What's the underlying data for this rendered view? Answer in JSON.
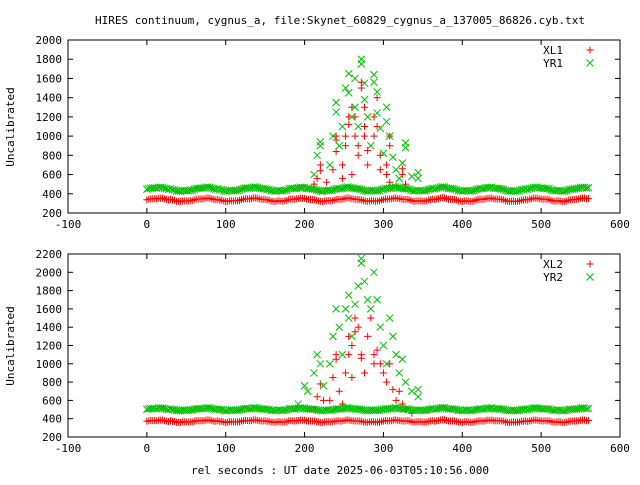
{
  "title": "HIRES continuum, cygnus_a, file:Skynet_60829_cygnus_a_137005_86826.cyb.txt",
  "xlabel": "rel seconds : UT date 2025-06-03T05:10:56.000",
  "colors": {
    "xl": "#ff0000",
    "yr": "#00c000",
    "axis": "#000000",
    "background": "#ffffff"
  },
  "chart_data": [
    {
      "type": "scatter",
      "ylabel": "Uncalibrated",
      "xlim": [
        -100,
        600
      ],
      "ylim": [
        200,
        2000
      ],
      "x_ticks": [
        -100,
        0,
        100,
        200,
        300,
        400,
        500,
        600
      ],
      "y_ticks": [
        200,
        400,
        600,
        800,
        1000,
        1200,
        1400,
        1600,
        1800,
        2000
      ],
      "legend_position": "top-right",
      "series": [
        {
          "name": "XL1",
          "marker": "plus",
          "color": "#ff0000",
          "baseline": {
            "x_start": 0,
            "x_end": 560,
            "x_step": 2.5,
            "y": 340,
            "ripple": 15,
            "ripple_period": 60
          },
          "peak_points": [
            [
              212,
              500
            ],
            [
              216,
              560
            ],
            [
              220,
              640
            ],
            [
              220,
              700
            ],
            [
              228,
              520
            ],
            [
              236,
              650
            ],
            [
              240,
              840
            ],
            [
              240,
              960
            ],
            [
              240,
              1000
            ],
            [
              248,
              560
            ],
            [
              248,
              700
            ],
            [
              252,
              900
            ],
            [
              252,
              1000
            ],
            [
              256,
              1120
            ],
            [
              256,
              1200
            ],
            [
              260,
              1300
            ],
            [
              260,
              600
            ],
            [
              264,
              1200
            ],
            [
              264,
              1000
            ],
            [
              268,
              900
            ],
            [
              268,
              800
            ],
            [
              272,
              1500
            ],
            [
              272,
              1560
            ],
            [
              276,
              1300
            ],
            [
              276,
              1100
            ],
            [
              276,
              1000
            ],
            [
              280,
              850
            ],
            [
              280,
              700
            ],
            [
              288,
              1000
            ],
            [
              288,
              1200
            ],
            [
              292,
              1400
            ],
            [
              292,
              1100
            ],
            [
              296,
              800
            ],
            [
              296,
              650
            ],
            [
              304,
              600
            ],
            [
              304,
              700
            ],
            [
              308,
              900
            ],
            [
              308,
              1000
            ],
            [
              308,
              520
            ],
            [
              316,
              480
            ],
            [
              324,
              600
            ],
            [
              324,
              660
            ],
            [
              328,
              500
            ]
          ]
        },
        {
          "name": "YR1",
          "marker": "cross",
          "color": "#00c000",
          "baseline": {
            "x_start": 0,
            "x_end": 560,
            "x_step": 2.5,
            "y": 450,
            "ripple": 18,
            "ripple_period": 60
          },
          "peak_points": [
            [
              196,
              460
            ],
            [
              212,
              600
            ],
            [
              216,
              800
            ],
            [
              220,
              900
            ],
            [
              220,
              940
            ],
            [
              232,
              700
            ],
            [
              236,
              1000
            ],
            [
              240,
              1250
            ],
            [
              240,
              1350
            ],
            [
              244,
              900
            ],
            [
              248,
              1100
            ],
            [
              252,
              1500
            ],
            [
              256,
              1650
            ],
            [
              256,
              1450
            ],
            [
              260,
              1200
            ],
            [
              264,
              1600
            ],
            [
              264,
              1300
            ],
            [
              268,
              1100
            ],
            [
              272,
              1800
            ],
            [
              272,
              1750
            ],
            [
              276,
              1550
            ],
            [
              276,
              1380
            ],
            [
              280,
              1200
            ],
            [
              284,
              900
            ],
            [
              288,
              1560
            ],
            [
              288,
              1640
            ],
            [
              292,
              1460
            ],
            [
              292,
              1240
            ],
            [
              296,
              1080
            ],
            [
              300,
              820
            ],
            [
              304,
              1150
            ],
            [
              304,
              1300
            ],
            [
              308,
              1000
            ],
            [
              312,
              780
            ],
            [
              316,
              650
            ],
            [
              320,
              560
            ],
            [
              324,
              720
            ],
            [
              328,
              880
            ],
            [
              328,
              930
            ],
            [
              336,
              580
            ],
            [
              344,
              560
            ],
            [
              344,
              620
            ]
          ]
        }
      ]
    },
    {
      "type": "scatter",
      "ylabel": "Uncalibrated",
      "xlim": [
        -100,
        600
      ],
      "ylim": [
        200,
        2200
      ],
      "x_ticks": [
        -100,
        0,
        100,
        200,
        300,
        400,
        500,
        600
      ],
      "y_ticks": [
        200,
        400,
        600,
        800,
        1000,
        1200,
        1400,
        1600,
        1800,
        2000,
        2200
      ],
      "legend_position": "top-right",
      "series": [
        {
          "name": "XL2",
          "marker": "plus",
          "color": "#ff0000",
          "baseline": {
            "x_start": 0,
            "x_end": 560,
            "x_step": 2.5,
            "y": 375,
            "ripple": 10,
            "ripple_period": 60
          },
          "peak_points": [
            [
              212,
              500
            ],
            [
              216,
              640
            ],
            [
              220,
              780
            ],
            [
              224,
              600
            ],
            [
              232,
              600
            ],
            [
              236,
              850
            ],
            [
              240,
              1050
            ],
            [
              240,
              1100
            ],
            [
              244,
              700
            ],
            [
              248,
              560
            ],
            [
              252,
              900
            ],
            [
              256,
              1100
            ],
            [
              256,
              1300
            ],
            [
              260,
              1200
            ],
            [
              260,
              850
            ],
            [
              264,
              1350
            ],
            [
              264,
              1500
            ],
            [
              268,
              1400
            ],
            [
              272,
              1100
            ],
            [
              272,
              1060
            ],
            [
              276,
              900
            ],
            [
              280,
              1300
            ],
            [
              284,
              1500
            ],
            [
              288,
              1100
            ],
            [
              288,
              1000
            ],
            [
              292,
              1150
            ],
            [
              296,
              1000
            ],
            [
              300,
              900
            ],
            [
              304,
              800
            ],
            [
              308,
              1000
            ],
            [
              312,
              720
            ],
            [
              316,
              600
            ],
            [
              320,
              700
            ],
            [
              324,
              560
            ],
            [
              328,
              500
            ],
            [
              336,
              460
            ]
          ]
        },
        {
          "name": "YR2",
          "marker": "cross",
          "color": "#00c000",
          "baseline": {
            "x_start": 0,
            "x_end": 560,
            "x_step": 2.5,
            "y": 505,
            "ripple": 12,
            "ripple_period": 60
          },
          "peak_points": [
            [
              192,
              560
            ],
            [
              200,
              760
            ],
            [
              204,
              700
            ],
            [
              212,
              900
            ],
            [
              216,
              1100
            ],
            [
              220,
              1000
            ],
            [
              224,
              760
            ],
            [
              232,
              1000
            ],
            [
              236,
              1300
            ],
            [
              240,
              1600
            ],
            [
              244,
              1400
            ],
            [
              248,
              1100
            ],
            [
              252,
              1600
            ],
            [
              256,
              1750
            ],
            [
              256,
              1500
            ],
            [
              260,
              1300
            ],
            [
              264,
              1650
            ],
            [
              268,
              1850
            ],
            [
              272,
              2100
            ],
            [
              272,
              2150
            ],
            [
              276,
              1900
            ],
            [
              280,
              1700
            ],
            [
              284,
              1600
            ],
            [
              288,
              2000
            ],
            [
              292,
              1700
            ],
            [
              296,
              1400
            ],
            [
              300,
              1200
            ],
            [
              304,
              1000
            ],
            [
              308,
              1500
            ],
            [
              312,
              1300
            ],
            [
              316,
              1100
            ],
            [
              320,
              900
            ],
            [
              324,
              1050
            ],
            [
              328,
              800
            ],
            [
              336,
              700
            ],
            [
              344,
              640
            ],
            [
              344,
              720
            ]
          ]
        }
      ]
    }
  ]
}
